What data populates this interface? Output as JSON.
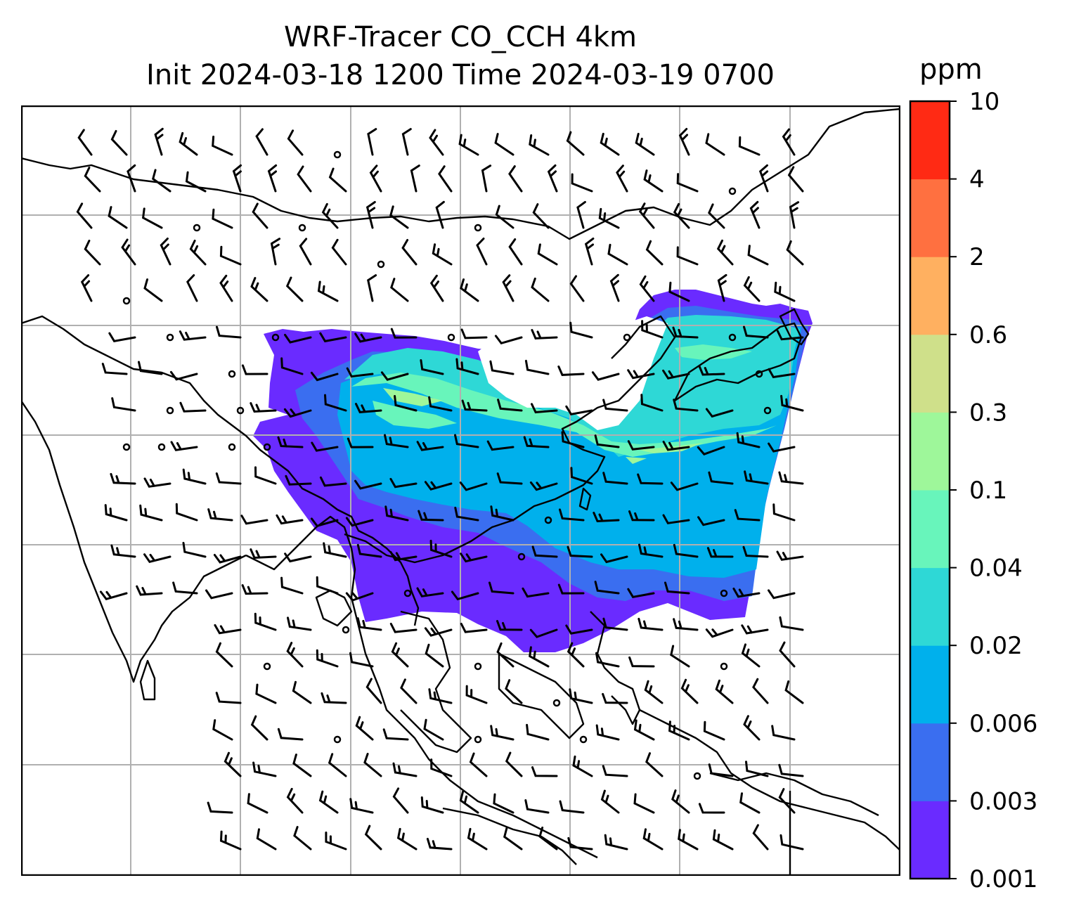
{
  "title": {
    "line1": "WRF-Tracer CO_CCH 4km",
    "line2": "Init 2024-03-18 1200 Time 2024-03-19 0700"
  },
  "colorbar": {
    "unit": "ppm",
    "ticks": [
      "0.001",
      "0.003",
      "0.006",
      "0.02",
      "0.04",
      "0.1",
      "0.3",
      "0.6",
      "2",
      "4",
      "10"
    ],
    "colors": [
      "#6a2bff",
      "#3a6ef0",
      "#00b0ec",
      "#2ed8d6",
      "#68f5bb",
      "#9ef79a",
      "#cfe08a",
      "#ffb060",
      "#ff7040",
      "#ff2a14"
    ]
  },
  "map": {
    "background": "#ffffff",
    "grid_color": "#b0b0b0",
    "coast_color": "#000000"
  }
}
